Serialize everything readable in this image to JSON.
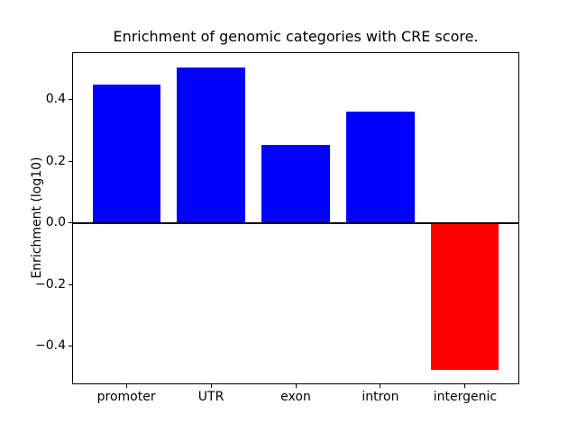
{
  "figure": {
    "background": "#ffffff"
  },
  "chart_data": {
    "type": "bar",
    "title": "Enrichment of genomic categories with CRE score.",
    "xlabel": "",
    "ylabel": "Enrichment (log10)",
    "categories": [
      "promoter",
      "UTR",
      "exon",
      "intron",
      "intergenic"
    ],
    "values": [
      0.449,
      0.505,
      0.253,
      0.362,
      -0.476
    ],
    "bar_colors": [
      "#0000ff",
      "#0000ff",
      "#0000ff",
      "#0000ff",
      "#ff0000"
    ],
    "positive_color": "#0000ff",
    "negative_color": "#ff0000",
    "bar_width": 0.8,
    "yticks": [
      0.4,
      0.2,
      0.0,
      -0.2,
      -0.4
    ],
    "ytick_labels": [
      "0.4",
      "0.2",
      "0.0",
      "−0.2",
      "−0.4"
    ],
    "ylim": [
      -0.524,
      0.554
    ],
    "xlim": [
      -0.64,
      4.64
    ],
    "grid": false,
    "legend": null,
    "zero_line": true,
    "axis_color": "#000000"
  }
}
